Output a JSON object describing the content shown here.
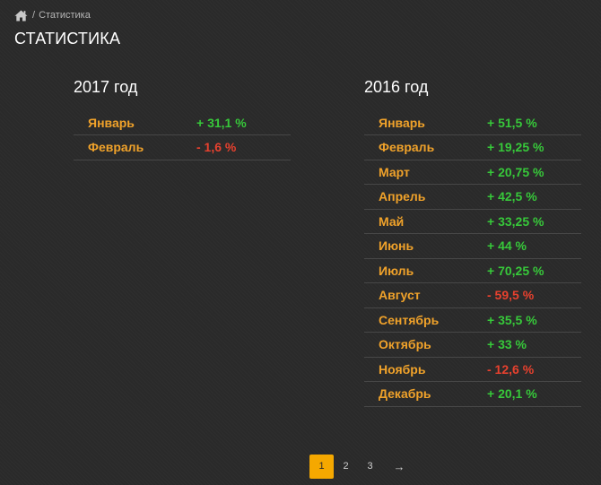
{
  "breadcrumb": {
    "separator": "/",
    "current": "Статистика"
  },
  "page": {
    "title": "СТАТИСТИКА"
  },
  "years": [
    {
      "title": "2017 год",
      "rows": [
        {
          "month": "Январь",
          "value": "+ 31,1 %",
          "trend": "positive"
        },
        {
          "month": "Февраль",
          "value": "- 1,6 %",
          "trend": "negative"
        }
      ]
    },
    {
      "title": "2016 год",
      "rows": [
        {
          "month": "Январь",
          "value": "+ 51,5 %",
          "trend": "positive"
        },
        {
          "month": "Февраль",
          "value": "+ 19,25 %",
          "trend": "positive"
        },
        {
          "month": "Март",
          "value": "+ 20,75 %",
          "trend": "positive"
        },
        {
          "month": "Апрель",
          "value": "+ 42,5 %",
          "trend": "positive"
        },
        {
          "month": "Май",
          "value": "+ 33,25 %",
          "trend": "positive"
        },
        {
          "month": "Июнь",
          "value": "+ 44 %",
          "trend": "positive"
        },
        {
          "month": "Июль",
          "value": "+ 70,25 %",
          "trend": "positive"
        },
        {
          "month": "Август",
          "value": "- 59,5 %",
          "trend": "negative"
        },
        {
          "month": "Сентябрь",
          "value": "+ 35,5 %",
          "trend": "positive"
        },
        {
          "month": "Октябрь",
          "value": "+ 33 %",
          "trend": "positive"
        },
        {
          "month": "Ноябрь",
          "value": "- 12,6 %",
          "trend": "negative"
        },
        {
          "month": "Декабрь",
          "value": "+ 20,1 %",
          "trend": "positive"
        }
      ]
    }
  ],
  "pagination": {
    "pages": [
      "1",
      "2",
      "3"
    ],
    "active": "1",
    "next_label": "→"
  },
  "icons": {
    "home": "home-icon"
  },
  "colors": {
    "month": "#f0a22a",
    "positive": "#37c83a",
    "negative": "#e8412e",
    "active_page": "#f5a800"
  }
}
